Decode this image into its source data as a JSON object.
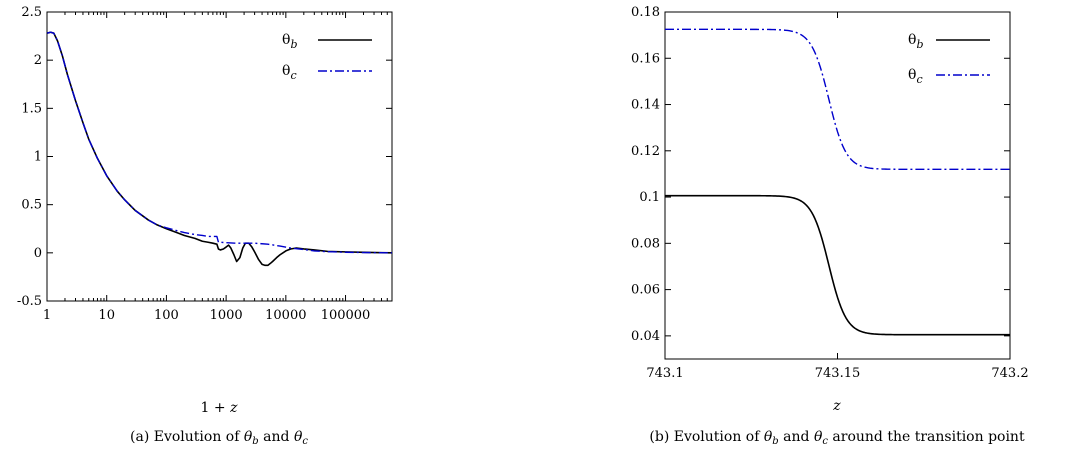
{
  "chart_data": [
    {
      "type": "line",
      "xscale": "log",
      "xlabel": "1 + z",
      "ylabel": "",
      "xlim": [
        1,
        600000
      ],
      "ylim": [
        -0.5,
        2.5
      ],
      "xticks": [
        1,
        10,
        100,
        1000,
        10000,
        100000
      ],
      "xtick_labels": [
        "1",
        "10",
        "100",
        "1000",
        "10000",
        "100000"
      ],
      "yticks": [
        -0.5,
        0,
        0.5,
        1,
        1.5,
        2,
        2.5
      ],
      "ytick_labels": [
        "-0.5",
        "0",
        "0.5",
        "1",
        "1.5",
        "2",
        "2.5"
      ],
      "grid": false,
      "legend": "top-right",
      "caption": "(a) Evolution of θb and θc",
      "series": [
        {
          "name": "θb",
          "color": "#000000",
          "style": "solid",
          "x": [
            1,
            1.15,
            1.3,
            1.5,
            1.8,
            2.2,
            3,
            4,
            5,
            7,
            10,
            15,
            20,
            30,
            50,
            70,
            100,
            150,
            200,
            300,
            400,
            500,
            600,
            700,
            743,
            800,
            900,
            1000,
            1100,
            1200,
            1350,
            1500,
            1700,
            1900,
            2100,
            2400,
            2700,
            3000,
            3500,
            4000,
            4500,
            5000,
            5500,
            6000,
            7000,
            8000,
            10000,
            12000,
            15000,
            20000,
            30000,
            50000,
            100000,
            200000,
            600000
          ],
          "y": [
            2.28,
            2.29,
            2.28,
            2.2,
            2.05,
            1.85,
            1.58,
            1.35,
            1.18,
            0.98,
            0.8,
            0.64,
            0.55,
            0.44,
            0.34,
            0.29,
            0.25,
            0.21,
            0.18,
            0.15,
            0.12,
            0.11,
            0.1,
            0.09,
            0.04,
            0.03,
            0.04,
            0.06,
            0.08,
            0.05,
            -0.02,
            -0.09,
            -0.05,
            0.05,
            0.1,
            0.1,
            0.06,
            0.01,
            -0.07,
            -0.12,
            -0.13,
            -0.13,
            -0.11,
            -0.09,
            -0.05,
            -0.02,
            0.02,
            0.04,
            0.05,
            0.04,
            0.03,
            0.015,
            0.01,
            0.005,
            0.0
          ]
        },
        {
          "name": "θc",
          "color": "#0000cc",
          "style": "dashdot",
          "x": [
            1,
            1.15,
            1.3,
            1.5,
            1.8,
            2.2,
            3,
            4,
            5,
            7,
            10,
            15,
            20,
            30,
            50,
            70,
            100,
            150,
            200,
            300,
            400,
            500,
            600,
            700,
            743,
            800,
            1000,
            1500,
            2000,
            3000,
            5000,
            8000,
            12000,
            20000,
            30000,
            50000,
            100000,
            200000,
            600000
          ],
          "y": [
            2.28,
            2.29,
            2.28,
            2.2,
            2.05,
            1.85,
            1.58,
            1.35,
            1.18,
            0.98,
            0.8,
            0.64,
            0.55,
            0.44,
            0.34,
            0.29,
            0.26,
            0.23,
            0.21,
            0.19,
            0.18,
            0.17,
            0.17,
            0.17,
            0.11,
            0.11,
            0.105,
            0.1,
            0.1,
            0.1,
            0.09,
            0.07,
            0.05,
            0.035,
            0.02,
            0.012,
            0.006,
            0.003,
            0.0
          ]
        }
      ]
    },
    {
      "type": "line",
      "xscale": "linear",
      "xlabel": "z",
      "ylabel": "",
      "xlim": [
        743.1,
        743.2
      ],
      "ylim": [
        0.03,
        0.18
      ],
      "xticks": [
        743.1,
        743.15,
        743.2
      ],
      "xtick_labels": [
        "743.1",
        "743.15",
        "743.2"
      ],
      "yticks": [
        0.04,
        0.06,
        0.08,
        0.1,
        0.12,
        0.14,
        0.16,
        0.18
      ],
      "ytick_labels": [
        "0.04",
        "0.06",
        "0.08",
        "0.1",
        "0.12",
        "0.14",
        "0.16",
        "0.18"
      ],
      "grid": false,
      "legend": "top-right",
      "caption": "(b) Evolution of θb and θc around the transition point",
      "series": [
        {
          "name": "θb",
          "color": "#000000",
          "style": "solid",
          "transition": {
            "center": 743.1475,
            "width": 0.0025,
            "y_start": 0.1006,
            "y_end": 0.0405
          }
        },
        {
          "name": "θc",
          "color": "#0000cc",
          "style": "dashdot",
          "transition": {
            "center": 743.1475,
            "width": 0.0025,
            "y_start": 0.1725,
            "y_end": 0.112
          }
        }
      ]
    }
  ]
}
